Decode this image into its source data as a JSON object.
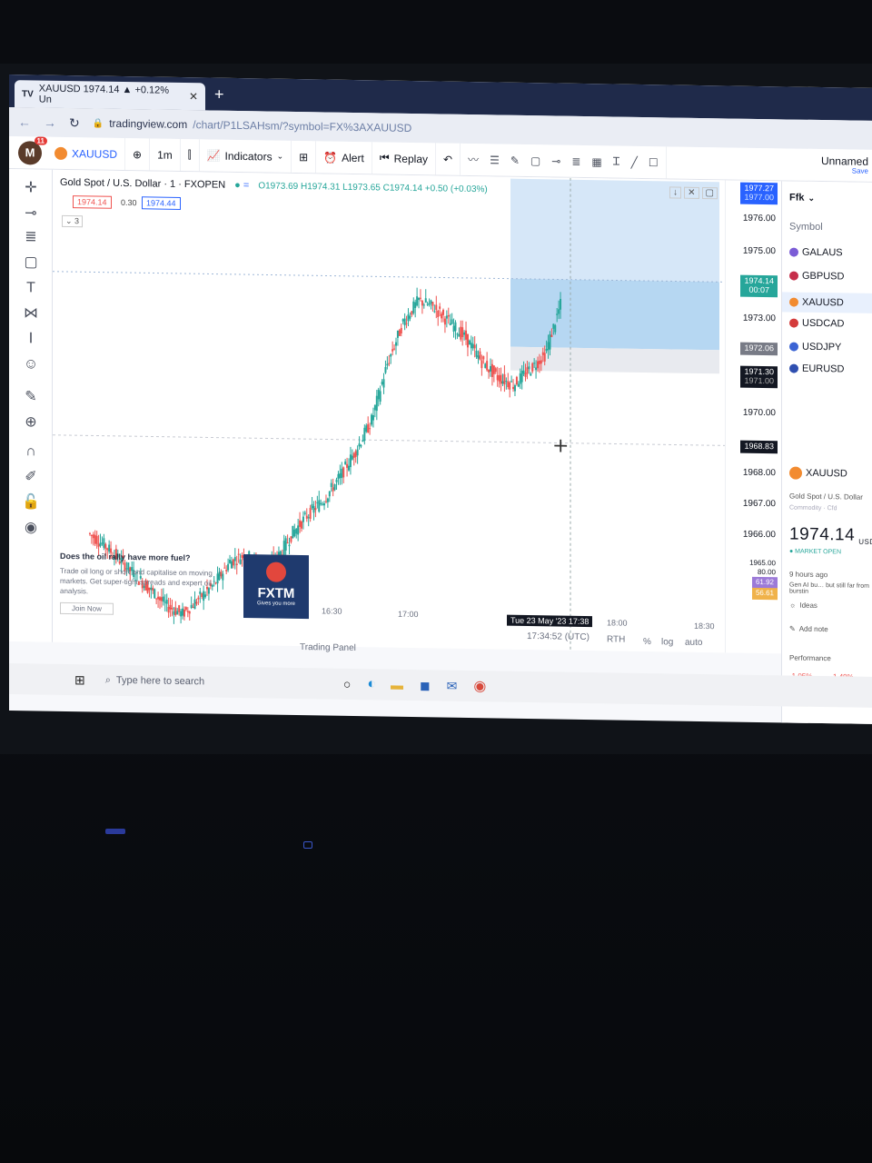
{
  "browser": {
    "tab_title": "XAUUSD 1974.14 ▲ +0.12% Un",
    "tab_logo": "TV",
    "new_tab": "+",
    "url_host": "tradingview.com",
    "url_path": "/chart/P1LSAHsm/?symbol=FX%3AXAUUSD"
  },
  "toolbar": {
    "avatar_letter": "M",
    "notifications": "11",
    "symbol": "XAUUSD",
    "interval": "1m",
    "indicators": "Indicators",
    "alert": "Alert",
    "replay": "Replay",
    "layout_name": "Unnamed",
    "save": "Save"
  },
  "legend": {
    "title": "Gold Spot / U.S. Dollar · 1 · FXOPEN",
    "ohlc": "O1973.69 H1974.31 L1973.65 C1974.14 +0.50 (+0.03%)",
    "bid": "1974.14",
    "spread": "0.30",
    "ask": "1974.44",
    "collapse": "⌄ 3"
  },
  "price_scale": {
    "ticks": [
      "1976.00",
      "1975.00",
      "1973.00",
      "1970.00",
      "1968.00",
      "1967.00",
      "1966.00",
      "1965.00"
    ],
    "top_label": "1977.27",
    "top_label_sub": "1977.00",
    "current": "1974.14",
    "current_timer": "00:07",
    "gray_label": "1972.06",
    "dark_label": "1971.30",
    "dark_label_sub": "1971.00",
    "cross_label": "1968.83",
    "ind_1": "80.00",
    "ind_2": "61.92",
    "ind_3": "56.61"
  },
  "watchlist": {
    "header": "Ffk",
    "column": "Symbol",
    "items": [
      "GALAUS",
      "GBPUSD",
      "XAUUSD",
      "USDCAD",
      "USDJPY",
      "EURUSD"
    ],
    "detail_symbol": "XAUUSD",
    "detail_name": "Gold Spot / U.S. Dollar",
    "detail_type": "Commodity · Cfd",
    "detail_price": "1974.14",
    "detail_currency": "USD",
    "market_status": "● MARKET OPEN",
    "news_time": "9 hours ago",
    "news_text": "Gen AI bu… but still far from burstin",
    "ideas": "Ideas",
    "add_note": "Add note",
    "performance": "Performance",
    "perf_1": "-1.05%",
    "perf_2": "-1.49%"
  },
  "ad": {
    "headline": "Does the oil rally have more fuel?",
    "body": "Trade oil long or short and capitalise on moving markets. Get super-tight spreads and expert oil analysis.",
    "cta": "Join Now",
    "brand": "FXTM",
    "brand_tag": "Gives you more"
  },
  "time_axis": {
    "t1": "16:30",
    "t2": "17:00",
    "crosshair": "Tue 23 May '23  17:38",
    "t3": "18:00",
    "t4": "18:30"
  },
  "status": {
    "clock": "17:34:52 (UTC)",
    "rth": "RTH",
    "pct": "%",
    "log": "log",
    "auto": "auto",
    "panel": "Trading Panel"
  },
  "taskbar": {
    "search_placeholder": "Type here to search"
  },
  "colors": {
    "up": "#26a69a",
    "down": "#ef5350",
    "accent": "#2962ff",
    "highlight": "#bcdcf5"
  },
  "chart_data": {
    "type": "line",
    "description_kind": "candlestick",
    "series": [
      {
        "values": [
          1967.9,
          1967.6,
          1967.2,
          1966.8,
          1966.4,
          1966.0,
          1965.8,
          1966.2,
          1966.6,
          1967.2,
          1967.4,
          1967.1,
          1967.3,
          1968.0,
          1968.5,
          1968.9,
          1969.5,
          1970.2,
          1971.0,
          1972.5,
          1973.6,
          1974.2,
          1974.0,
          1973.6,
          1973.2,
          1972.6,
          1972.2,
          1972.0,
          1972.4,
          1972.8,
          1974.14
        ]
      }
    ],
    "ylim": [
      1965,
      1977.5
    ]
  }
}
